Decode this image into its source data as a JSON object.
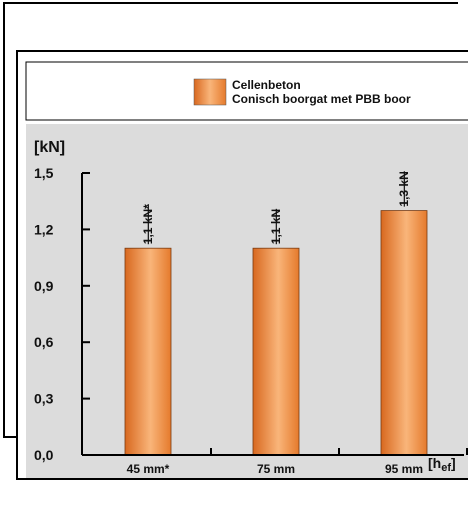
{
  "chart_data": {
    "type": "bar",
    "ylabel": "[kN]",
    "xlabel_main": "[h",
    "xlabel_sub": "ef",
    "xlabel_end": "]",
    "categories": [
      "45 mm*",
      "75 mm",
      "95 mm"
    ],
    "series": [
      {
        "name": "Cellenbeton\nConisch boorgat met PBB boor",
        "values": [
          1.1,
          1.1,
          1.3
        ],
        "labels": [
          "1,1 kN*",
          "1,1 kN",
          "1,3 kN"
        ]
      }
    ],
    "ylim": [
      0,
      1.5
    ],
    "yticks": [
      "0,0",
      "0,3",
      "0,6",
      "0,9",
      "1,2",
      "1,5"
    ],
    "legend": {
      "line1": "Cellenbeton",
      "line2": "Conisch boorgat met PBB boor",
      "placement": "top-center"
    },
    "grid": false,
    "colors": {
      "bar": "#f08a3c",
      "bar_light": "#f9b57a",
      "bar_dark": "#d8681f",
      "bg": "#dcdcdc"
    }
  }
}
